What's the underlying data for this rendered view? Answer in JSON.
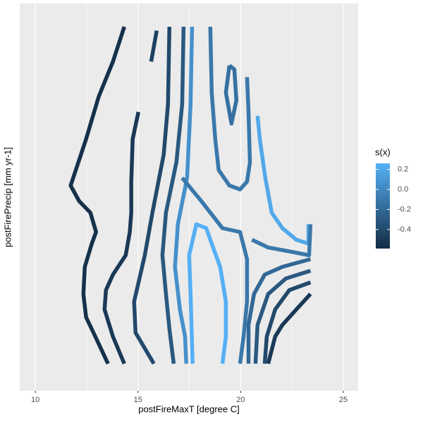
{
  "chart_data": {
    "type": "contour",
    "xlabel": "postFireMaxT [degree C]",
    "ylabel": "postFirePrecip [mm yr-1]",
    "xlim": [
      9.24,
      25.72
    ],
    "ylim": [
      0,
      1
    ],
    "xticks": [
      10,
      15,
      20,
      25
    ],
    "x_minor_ticks": [
      12.5,
      17.5,
      22.5
    ],
    "grid": true,
    "colorbar": {
      "title": "s(x)",
      "low_color": "#132B43",
      "high_color": "#56B1F7",
      "limits": [
        -0.59,
        0.26
      ],
      "ticks": [
        0.2,
        {
          "value": 0,
          "label": "0.0"
        },
        -0.2,
        -0.4
      ]
    },
    "contours": [
      {
        "level": -0.55,
        "x": [
          14.33,
          13.78,
          13.09,
          12.47,
          11.72,
          12.13,
          12.68,
          12.96,
          12.75,
          12.41,
          12.34,
          12.47,
          12.92,
          13.54
        ],
        "y": [
          0.94,
          0.85,
          0.76,
          0.65,
          0.53,
          0.49,
          0.46,
          0.41,
          0.38,
          0.32,
          0.25,
          0.19,
          0.14,
          0.07
        ]
      },
      {
        "level": -0.5,
        "x": [
          15.02,
          14.74,
          14.67,
          14.67,
          14.6,
          14.4,
          13.78,
          13.44,
          13.37,
          13.78,
          14.33
        ],
        "y": [
          0.72,
          0.65,
          0.54,
          0.46,
          0.41,
          0.35,
          0.3,
          0.26,
          0.21,
          0.14,
          0.07
        ]
      },
      {
        "level": -0.45,
        "x": [
          15.91,
          15.64
        ],
        "y": [
          0.93,
          0.85
        ]
      },
      {
        "level": -0.4,
        "x": [
          16.53,
          16.46,
          16.25,
          15.7,
          15.33,
          14.81,
          14.88,
          15.77
        ],
        "y": [
          0.94,
          0.74,
          0.61,
          0.46,
          0.35,
          0.23,
          0.15,
          0.07
        ]
      },
      {
        "level": -0.3,
        "x": [
          17.22,
          17.15,
          16.87,
          16.36,
          16.19,
          16.36,
          16.53,
          16.74
        ],
        "y": [
          0.94,
          0.74,
          0.59,
          0.46,
          0.35,
          0.25,
          0.16,
          0.07
        ]
      },
      {
        "level": 0.05,
        "x": [
          17.63,
          17.56,
          17.39,
          16.94,
          16.8,
          17.04,
          17.29,
          17.35
        ],
        "y": [
          0.94,
          0.74,
          0.55,
          0.43,
          0.32,
          0.21,
          0.14,
          0.07
        ]
      },
      {
        "level": 0.25,
        "x": [
          17.66,
          17.56,
          17.49,
          17.84,
          18.32,
          18.59,
          19.0,
          19.28,
          19.28,
          19.11
        ],
        "y": [
          0.07,
          0.25,
          0.35,
          0.43,
          0.42,
          0.38,
          0.32,
          0.23,
          0.14,
          0.07
        ]
      },
      {
        "level": -0.1,
        "x": [
          18.52,
          18.59,
          18.76,
          18.93,
          19.45,
          19.97,
          20.31,
          20.45,
          20.38,
          20.31
        ],
        "y": [
          0.94,
          0.77,
          0.65,
          0.57,
          0.53,
          0.52,
          0.54,
          0.59,
          0.72,
          0.81
        ]
      },
      {
        "level": -0.15,
        "x": [
          19.45,
          19.28,
          19.55,
          19.79,
          19.69,
          19.45
        ],
        "y": [
          0.84,
          0.77,
          0.69,
          0.75,
          0.83,
          0.84
        ]
      },
      {
        "level": -0.1,
        "x": [
          17.15,
          18.08,
          19.11,
          19.97,
          20.31,
          20.31,
          20.14,
          19.97
        ],
        "y": [
          0.55,
          0.49,
          0.42,
          0.41,
          0.34,
          0.23,
          0.14,
          0.07
        ]
      },
      {
        "level": 0.2,
        "x": [
          20.82,
          20.93,
          21.2,
          21.51,
          22.03,
          22.71,
          23.3,
          23.3
        ],
        "y": [
          0.71,
          0.65,
          0.55,
          0.46,
          0.42,
          0.39,
          0.38,
          0.43
        ]
      },
      {
        "level": -0.1,
        "x": [
          20.55,
          21.34,
          22.37,
          23.33,
          23.4
        ],
        "y": [
          0.39,
          0.37,
          0.36,
          0.35,
          0.43
        ]
      },
      {
        "level": -0.2,
        "x": [
          23.4,
          22.03,
          21.17,
          20.65,
          20.38,
          20.38
        ],
        "y": [
          0.34,
          0.32,
          0.3,
          0.25,
          0.17,
          0.07
        ]
      },
      {
        "level": -0.3,
        "x": [
          23.4,
          22.2,
          21.34,
          20.82,
          20.72
        ],
        "y": [
          0.31,
          0.29,
          0.25,
          0.17,
          0.07
        ]
      },
      {
        "level": -0.4,
        "x": [
          23.4,
          22.37,
          21.68,
          21.27,
          21.17
        ],
        "y": [
          0.28,
          0.26,
          0.21,
          0.14,
          0.07
        ]
      },
      {
        "level": -0.5,
        "x": [
          23.4,
          22.71,
          22.03,
          21.68,
          21.34
        ],
        "y": [
          0.25,
          0.21,
          0.17,
          0.14,
          0.07
        ]
      }
    ]
  }
}
